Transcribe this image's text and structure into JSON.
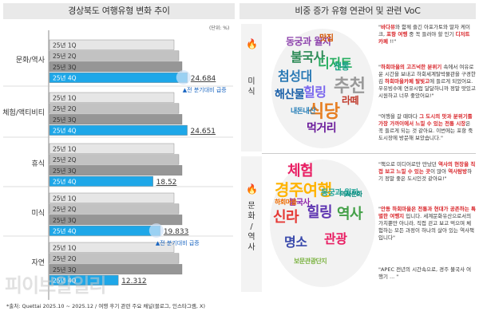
{
  "left_title": "경상북도 여행유형 변화 추이",
  "right_title": "비중 증가 유형 연관어 및 관련 VoC",
  "unit": "(단위: %)",
  "source": "*출처: Quettai 2025.10 ~ 2025.12 / 여행 후기 관련 주요 채널(블로그, 인스타그램, X)",
  "watermark": "피이브알일리",
  "chart_data": {
    "type": "bar",
    "orientation": "horizontal",
    "categories": [
      "문화/역사",
      "체험/액티비티",
      "휴식",
      "미식",
      "자연"
    ],
    "series": [
      {
        "name": "25년 1Q",
        "values": [
          null,
          null,
          null,
          null,
          null
        ]
      },
      {
        "name": "25년 2Q",
        "values": [
          null,
          null,
          null,
          null,
          null
        ]
      },
      {
        "name": "25년 3Q",
        "values": [
          null,
          null,
          null,
          null,
          null
        ]
      },
      {
        "name": "25년 4Q",
        "values": [
          24.684,
          24.651,
          18.52,
          19.833,
          12.312
        ]
      }
    ],
    "value_labels": [
      "24.684",
      "24.651",
      "18.52",
      "19.833",
      "12.312"
    ],
    "annotations": [
      {
        "category": "문화/역사",
        "text": "▲전 분기대비 급증"
      },
      {
        "category": "미식",
        "text": "▲전 분기대비 급증"
      }
    ],
    "series_colors": {
      "25년 1Q": "#e6e6e6",
      "25년 2Q": "#c2c2c2",
      "25년 3Q": "#969696",
      "25년 4Q": "#1ea7e8"
    },
    "xlabel": "",
    "ylabel": ""
  },
  "sections": [
    {
      "label": "미식",
      "cloud_words": [
        {
          "t": "동궁과 월지",
          "c": "#8e44ad",
          "s": 12
        },
        {
          "t": "불국사",
          "c": "#2e8b57",
          "s": 16
        },
        {
          "t": "디저트",
          "c": "#27ae60",
          "s": 16
        },
        {
          "t": "첨성대",
          "c": "#2c7bb6",
          "s": 16
        },
        {
          "t": "해산물",
          "c": "#1a5fa8",
          "s": 14
        },
        {
          "t": "힐링",
          "c": "#7b68ee",
          "s": 16
        },
        {
          "t": "추천",
          "c": "#999999",
          "s": 22
        },
        {
          "t": "식당",
          "c": "#e67e22",
          "s": 22
        },
        {
          "t": "먹거리",
          "c": "#6a1b9a",
          "s": 14
        },
        {
          "t": "라떼",
          "c": "#c0392b",
          "s": 12
        },
        {
          "t": "전통",
          "c": "#16a085",
          "s": 11
        },
        {
          "t": "내돈내산",
          "c": "#2980b9",
          "s": 9
        },
        {
          "t": "맛집",
          "c": "#d35400",
          "s": 10
        }
      ],
      "voc": [
        {
          "t": "\"바다뷰와 함께 즐긴 아포가토와 말차 케이크, 포항 여행 중 꼭 들러야 할 인기 디저트 카페 !!\"",
          "hl": [
            "바다뷰",
            "포항 여행",
            "디저트 카페"
          ]
        },
        {
          "t": "\"하회마을의 고즈넉한 분위기 속에서 여유로운 시간을 보내고 하회세계탈박물관을 구경한 김 하회마을카페 탈빛고에 들르게 되었어요. 우유빙수에 연유시럽 달달하니까 정말 맛있고 시원하고 너무 좋았어요!\"",
          "hl": [
            "하회마을의 고즈넉한 분위기",
            "하회마을카페 탈빛고"
          ]
        },
        {
          "t": "\"여행을 갈 때마다 그 도시의 맛과 분위기를 가장 가까이에서 느낄 수 있는 전통 시장은 꼭 들르게 되는 것 같아요. 이번에는 포항 죽도시장에 방문해 보았습니다.\"",
          "hl": [
            "그 도시의 맛과 분위기를 가장 가까이에서 느낄 수 있는 전통 시장"
          ]
        }
      ]
    },
    {
      "label": "문화/역사",
      "cloud_words": [
        {
          "t": "체험",
          "c": "#e91e63",
          "s": 18
        },
        {
          "t": "경주여행",
          "c": "#ffb300",
          "s": 20
        },
        {
          "t": "신라",
          "c": "#e53935",
          "s": 18
        },
        {
          "t": "힐링",
          "c": "#5e35b1",
          "s": 18
        },
        {
          "t": "역사",
          "c": "#43a047",
          "s": 18
        },
        {
          "t": "명소",
          "c": "#3949ab",
          "s": 16
        },
        {
          "t": "관광",
          "c": "#e91e63",
          "s": 16
        },
        {
          "t": "동궁과 월지",
          "c": "#26a69a",
          "s": 10
        },
        {
          "t": "불국사",
          "c": "#8e24aa",
          "s": 10
        },
        {
          "t": "보문관광단지",
          "c": "#7cb342",
          "s": 8
        },
        {
          "t": "하회마을",
          "c": "#ef6c00",
          "s": 8
        },
        {
          "t": "역사문화",
          "c": "#00897b",
          "s": 8
        }
      ],
      "voc": [
        {
          "t": "\"책으로 미디어로만 만났던 역사의 현장을 직접 보고 느낄 수 있는 곳이 많아 역사탐방하기 정말 좋은 도시인것 같아요!\"",
          "hl": [
            "역사의 현장을 직접 보고 느낄 수 있는 곳",
            "역사탐방"
          ]
        },
        {
          "t": "\"안동 하회마을은 전통과 현대가 공존하는 특별한 여행지 입니다. 세계문화유산으로서의 가치뿐만 아니라, 직접 걷고 보고 먹으며 체험하는 모든 과정이 하나의 살아 있는 역사책 입니다\"",
          "hl": [
            "안동 하회마을은 전통과 현대가 공존하는 특별한 여행지"
          ]
        },
        {
          "t": "\"APEC 전년의 시간속으로, 경주 불국사 여행기 ... \"",
          "hl": []
        }
      ]
    }
  ]
}
